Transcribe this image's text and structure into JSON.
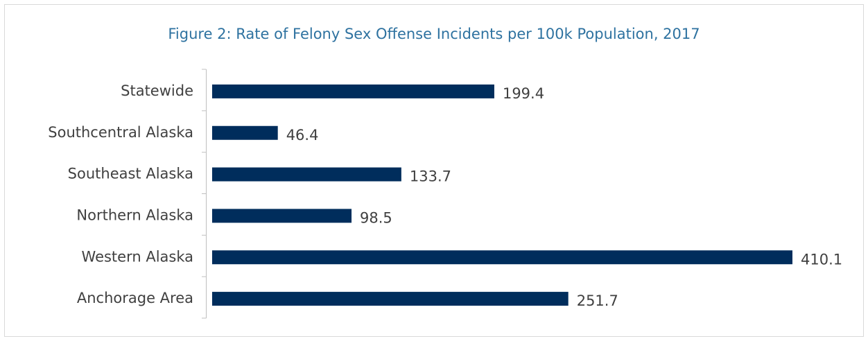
{
  "chart_data": {
    "type": "bar",
    "orientation": "horizontal",
    "title": "Figure 2: Rate of Felony Sex Offense Incidents per 100k Population, 2017",
    "categories": [
      "Statewide",
      "Southcentral Alaska",
      "Southeast Alaska",
      "Northern Alaska",
      "Western Alaska",
      "Anchorage Area"
    ],
    "values": [
      199.4,
      46.4,
      133.7,
      98.5,
      410.1,
      251.7
    ],
    "color": "#002d5c"
  }
}
